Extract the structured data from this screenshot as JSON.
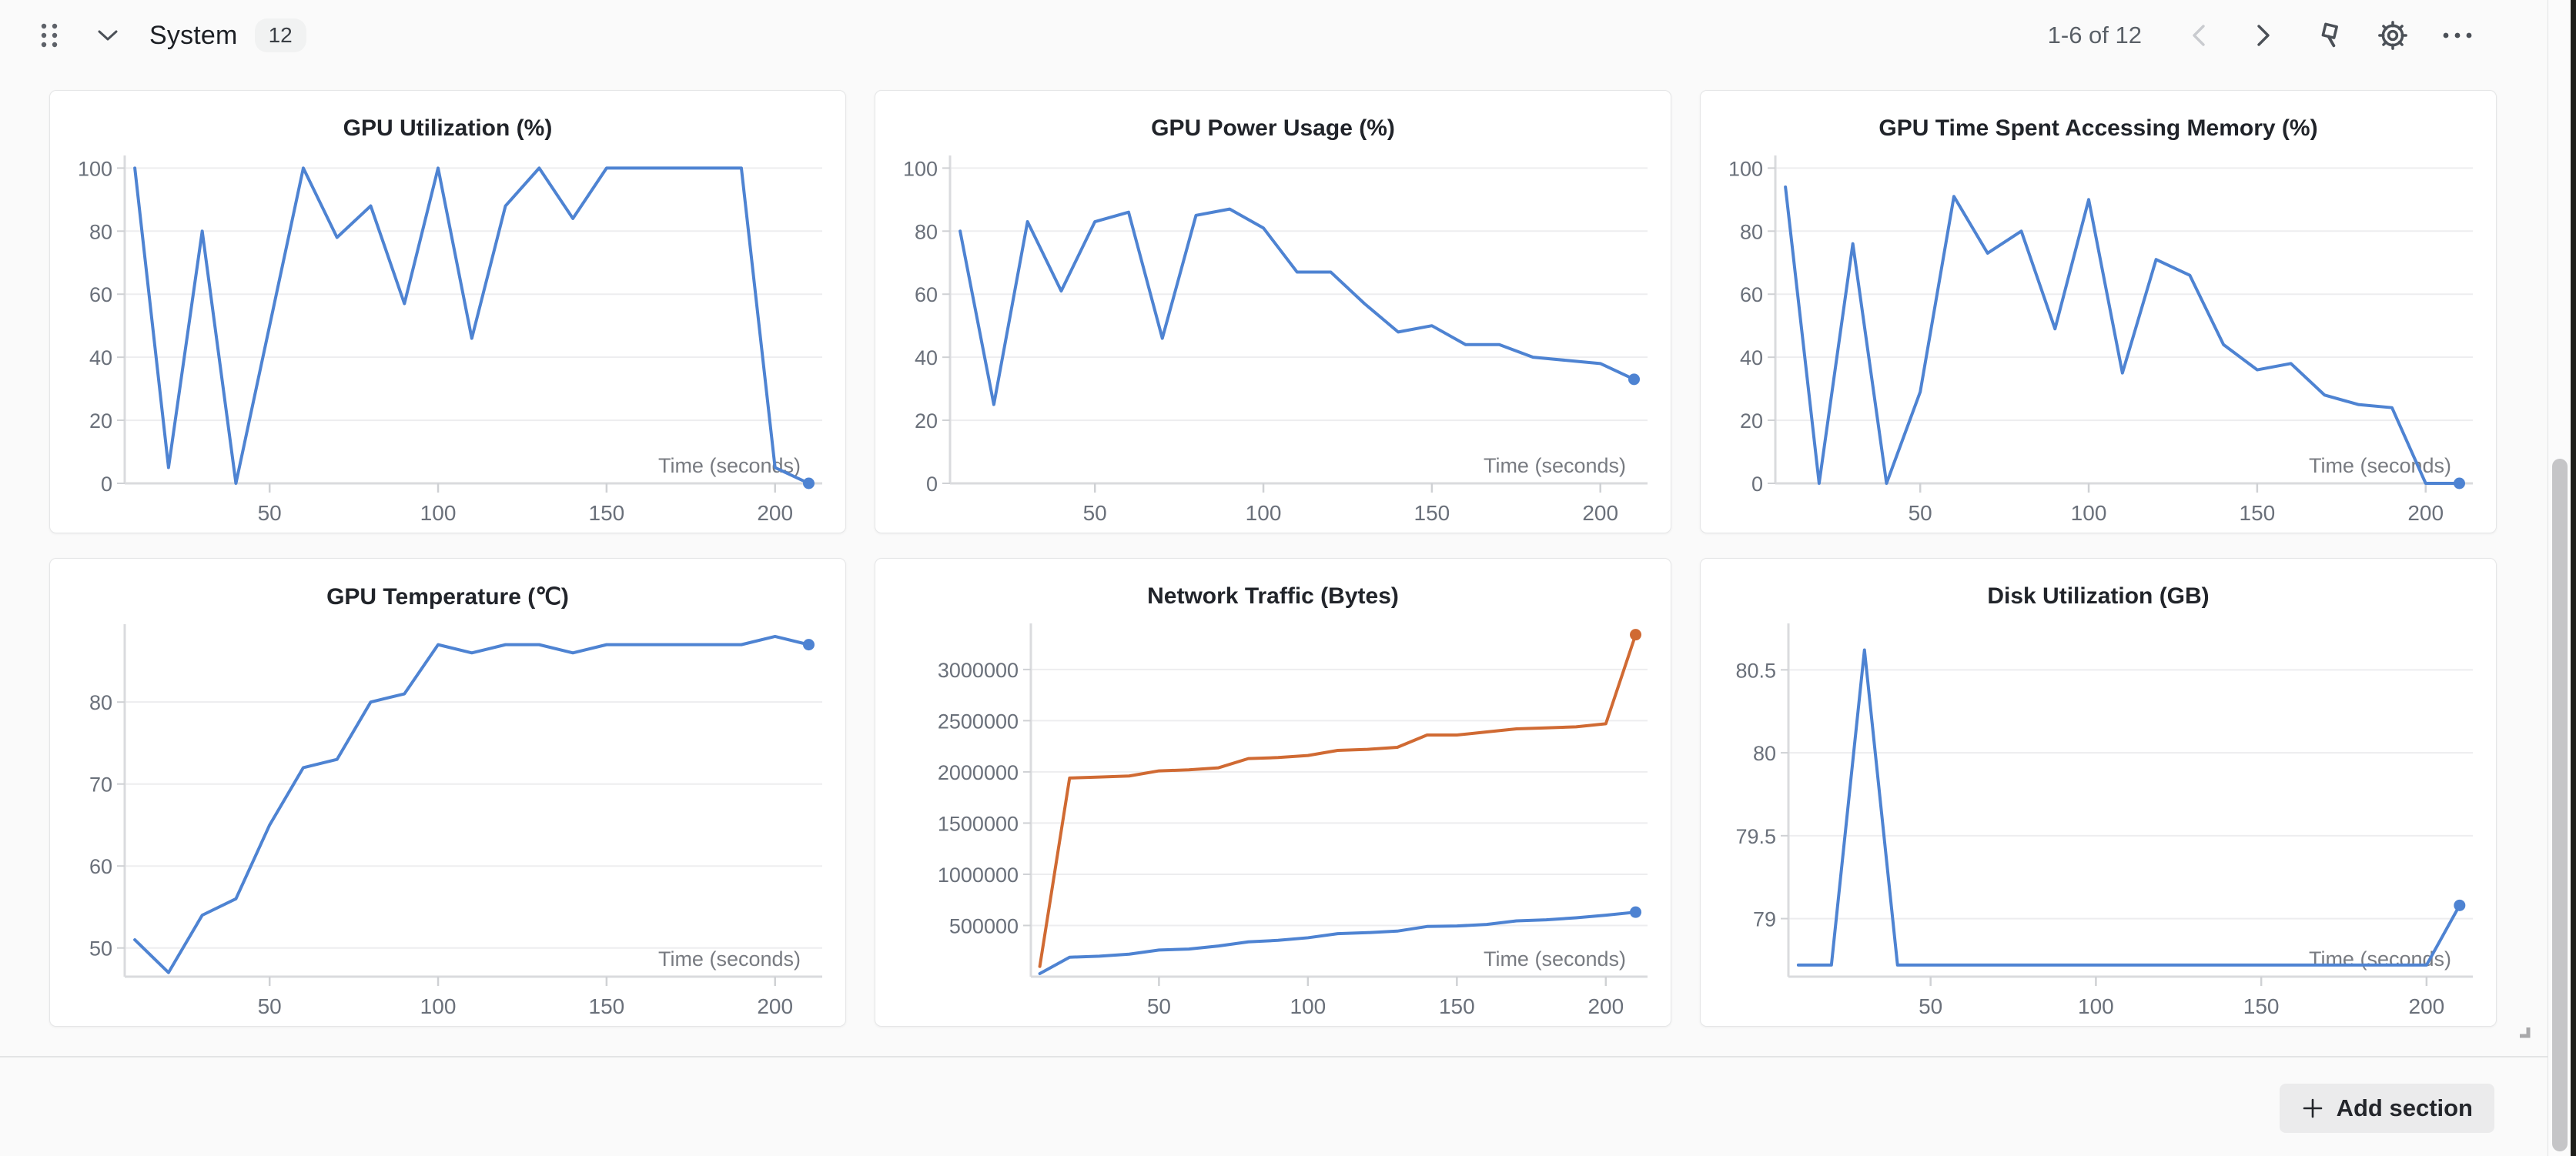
{
  "header": {
    "title": "System",
    "badge": "12",
    "range": "1-6 of 12"
  },
  "footer": {
    "add_section_label": "Add section"
  },
  "icons": {
    "drag_handle": "six-dot-grid",
    "collapse": "chevron-down",
    "prev_page": "chevron-left",
    "next_page": "chevron-right",
    "pin": "pushpin",
    "settings": "gear",
    "more": "ellipsis",
    "add": "plus",
    "resize": "corner-handle"
  },
  "colors": {
    "blue": "#4e83d2",
    "orange": "#d06a33",
    "grid_line": "#ededef",
    "axis_line": "#dadbde",
    "tick_text": "#6a707a",
    "xlabel_text": "#787b81",
    "icon_gray": "#4b5057",
    "icon_disabled": "#c9cbcf",
    "page_bg": "#fafafa",
    "card_bg": "#ffffff"
  },
  "chart_data": [
    {
      "type": "line",
      "title": "GPU Utilization (%)",
      "xlabel": "Time (seconds)",
      "x": [
        10,
        20,
        30,
        40,
        50,
        60,
        70,
        80,
        90,
        100,
        110,
        120,
        130,
        140,
        150,
        160,
        170,
        180,
        190,
        200,
        210
      ],
      "x_ticks": [
        50,
        100,
        150,
        200
      ],
      "xlim": [
        7,
        214
      ],
      "y_ticks": [
        0,
        20,
        40,
        60,
        80,
        100
      ],
      "ylim": [
        0,
        104
      ],
      "left_margin": 95,
      "series": [
        {
          "color": "#4e83d2",
          "end_dot": true,
          "values": [
            100,
            5,
            80,
            0,
            50,
            100,
            78,
            88,
            57,
            100,
            46,
            88,
            100,
            84,
            100,
            100,
            100,
            100,
            100,
            5,
            0
          ]
        }
      ]
    },
    {
      "type": "line",
      "title": "GPU Power Usage (%)",
      "xlabel": "Time (seconds)",
      "x": [
        10,
        20,
        30,
        40,
        50,
        60,
        70,
        80,
        90,
        100,
        110,
        120,
        130,
        140,
        150,
        160,
        170,
        180,
        190,
        200,
        210
      ],
      "x_ticks": [
        50,
        100,
        150,
        200
      ],
      "xlim": [
        7,
        214
      ],
      "y_ticks": [
        0,
        20,
        40,
        60,
        80,
        100
      ],
      "ylim": [
        0,
        104
      ],
      "left_margin": 95,
      "series": [
        {
          "color": "#4e83d2",
          "end_dot": true,
          "values": [
            80,
            25,
            83,
            61,
            83,
            86,
            46,
            85,
            87,
            81,
            67,
            67,
            57,
            48,
            50,
            44,
            44,
            40,
            39,
            38,
            33
          ]
        }
      ]
    },
    {
      "type": "line",
      "title": "GPU Time Spent Accessing Memory (%)",
      "xlabel": "Time (seconds)",
      "x": [
        10,
        20,
        30,
        40,
        50,
        60,
        70,
        80,
        90,
        100,
        110,
        120,
        130,
        140,
        150,
        160,
        170,
        180,
        190,
        200,
        210
      ],
      "x_ticks": [
        50,
        100,
        150,
        200
      ],
      "xlim": [
        7,
        214
      ],
      "y_ticks": [
        0,
        20,
        40,
        60,
        80,
        100
      ],
      "ylim": [
        0,
        104
      ],
      "left_margin": 95,
      "series": [
        {
          "color": "#4e83d2",
          "end_dot": true,
          "values": [
            94,
            0,
            76,
            0,
            29,
            91,
            73,
            80,
            49,
            90,
            35,
            71,
            66,
            44,
            36,
            38,
            28,
            25,
            24,
            0,
            0
          ]
        }
      ]
    },
    {
      "type": "line",
      "title": "GPU Temperature (℃)",
      "xlabel": "Time (seconds)",
      "x": [
        10,
        20,
        30,
        40,
        50,
        60,
        70,
        80,
        90,
        100,
        110,
        120,
        130,
        140,
        150,
        160,
        170,
        180,
        190,
        200,
        210
      ],
      "x_ticks": [
        50,
        100,
        150,
        200
      ],
      "xlim": [
        7,
        214
      ],
      "y_ticks": [
        50,
        60,
        70,
        80
      ],
      "ylim": [
        46.5,
        89.5
      ],
      "left_margin": 95,
      "series": [
        {
          "color": "#4e83d2",
          "end_dot": true,
          "values": [
            51,
            47,
            54,
            56,
            65,
            72,
            73,
            80,
            81,
            87,
            86,
            87,
            87,
            86,
            87,
            87,
            87,
            87,
            87,
            88,
            87
          ]
        }
      ]
    },
    {
      "type": "line",
      "title": "Network Traffic (Bytes)",
      "xlabel": "Time (seconds)",
      "x": [
        10,
        20,
        30,
        40,
        50,
        60,
        70,
        80,
        90,
        100,
        110,
        120,
        130,
        140,
        150,
        160,
        170,
        180,
        190,
        200,
        210
      ],
      "x_ticks": [
        50,
        100,
        150,
        200
      ],
      "xlim": [
        7,
        214
      ],
      "y_ticks": [
        500000,
        1000000,
        1500000,
        2000000,
        2500000,
        3000000
      ],
      "ylim": [
        0,
        3450000
      ],
      "left_margin": 200,
      "series": [
        {
          "color": "#d06a33",
          "end_dot": true,
          "values": [
            100000,
            1940000,
            1950000,
            1960000,
            2010000,
            2020000,
            2040000,
            2130000,
            2140000,
            2160000,
            2210000,
            2220000,
            2240000,
            2360000,
            2360000,
            2390000,
            2420000,
            2430000,
            2440000,
            2470000,
            3340000
          ]
        },
        {
          "color": "#4e83d2",
          "end_dot": true,
          "values": [
            30000,
            190000,
            200000,
            220000,
            260000,
            270000,
            300000,
            340000,
            355000,
            380000,
            420000,
            430000,
            445000,
            490000,
            495000,
            510000,
            545000,
            555000,
            575000,
            600000,
            630000
          ]
        }
      ]
    },
    {
      "type": "line",
      "title": "Disk Utilization (GB)",
      "xlabel": "Time (seconds)",
      "x": [
        10,
        20,
        30,
        40,
        50,
        60,
        70,
        80,
        90,
        100,
        110,
        120,
        130,
        140,
        150,
        160,
        170,
        180,
        190,
        200,
        210
      ],
      "x_ticks": [
        50,
        100,
        150,
        200
      ],
      "xlim": [
        7,
        214
      ],
      "y_ticks": [
        79,
        79.5,
        80,
        80.5
      ],
      "ylim": [
        78.65,
        80.78
      ],
      "left_margin": 112,
      "series": [
        {
          "color": "#4e83d2",
          "end_dot": true,
          "values": [
            78.72,
            78.72,
            80.62,
            78.72,
            78.72,
            78.72,
            78.72,
            78.72,
            78.72,
            78.72,
            78.72,
            78.72,
            78.72,
            78.72,
            78.72,
            78.72,
            78.72,
            78.72,
            78.72,
            78.72,
            79.08
          ]
        }
      ]
    }
  ]
}
